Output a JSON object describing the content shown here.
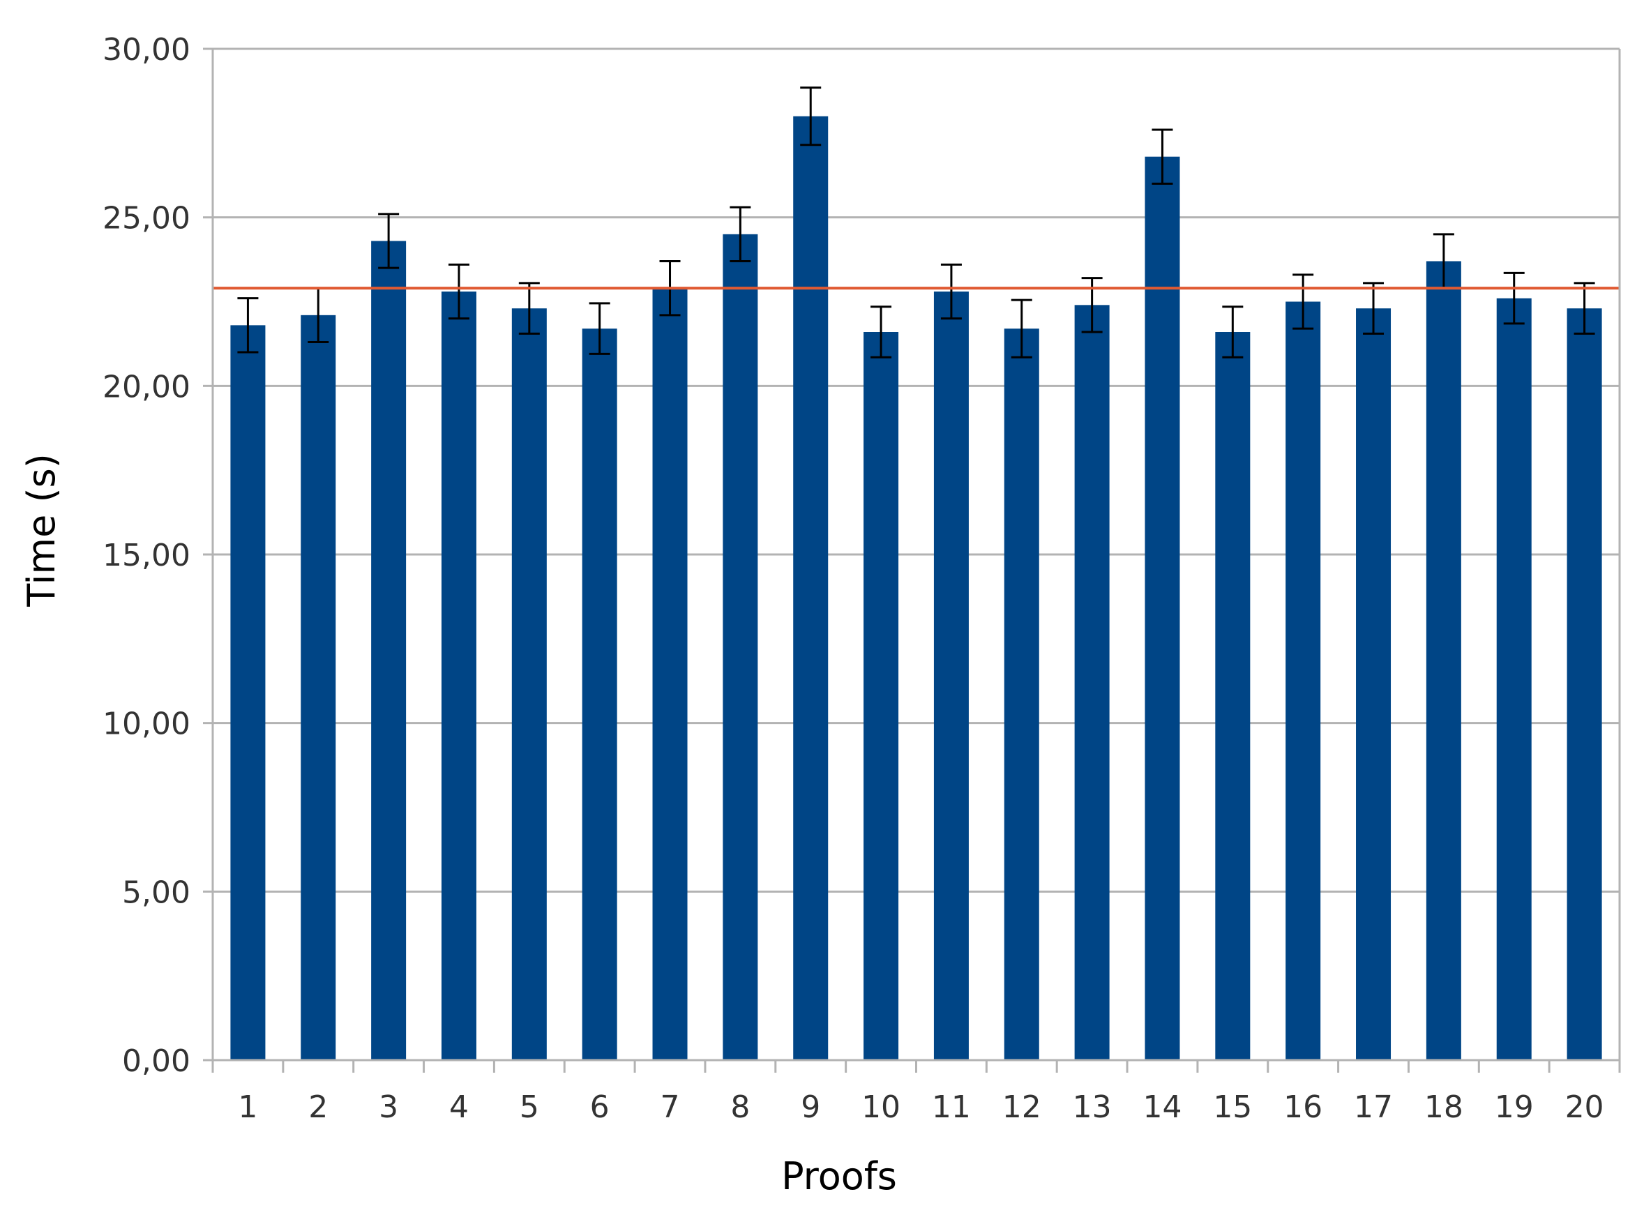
{
  "chart_data": {
    "type": "bar",
    "title": "",
    "xlabel": "Proofs",
    "ylabel": "Time (s)",
    "categories": [
      "1",
      "2",
      "3",
      "4",
      "5",
      "6",
      "7",
      "8",
      "9",
      "10",
      "11",
      "12",
      "13",
      "14",
      "15",
      "16",
      "17",
      "18",
      "19",
      "20"
    ],
    "series": [
      {
        "values": [
          21.8,
          22.1,
          24.3,
          22.8,
          22.3,
          21.7,
          22.9,
          24.5,
          28.0,
          21.6,
          22.8,
          21.7,
          22.4,
          26.8,
          21.6,
          22.5,
          22.3,
          23.7,
          22.6,
          22.3
        ],
        "errors": [
          0.8,
          0.8,
          0.8,
          0.8,
          0.75,
          0.75,
          0.8,
          0.8,
          0.85,
          0.75,
          0.8,
          0.85,
          0.8,
          0.8,
          0.75,
          0.8,
          0.75,
          0.8,
          0.75,
          0.75
        ],
        "color": "#004586"
      }
    ],
    "reference_line": {
      "value": 22.9,
      "color": "#e05a32"
    },
    "ylim": [
      0,
      30
    ],
    "yticks": [
      0,
      5,
      10,
      15,
      20,
      25,
      30
    ],
    "ytick_labels": [
      "0,00",
      "5,00",
      "10,00",
      "15,00",
      "20,00",
      "25,00",
      "30,00"
    ],
    "grid": true,
    "legend": "none",
    "colors": {
      "grid": "#b3b3b3",
      "error_bar": "#000000"
    }
  }
}
